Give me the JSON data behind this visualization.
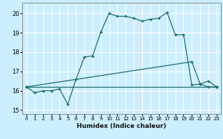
{
  "xlabel": "Humidex (Indice chaleur)",
  "bg_color": "#cceeff",
  "line_color": "#1a6b6b",
  "grid_color": "#ffffff",
  "xlim": [
    -0.5,
    23.5
  ],
  "ylim": [
    14.8,
    20.55
  ],
  "yticks": [
    15,
    16,
    17,
    18,
    19,
    20
  ],
  "xticks": [
    0,
    1,
    2,
    3,
    4,
    5,
    6,
    7,
    8,
    9,
    10,
    11,
    12,
    13,
    14,
    15,
    16,
    17,
    18,
    19,
    20,
    21,
    22,
    23
  ],
  "series1_x": [
    0,
    1,
    2,
    3,
    4,
    5,
    6,
    7,
    8,
    9,
    10,
    11,
    12,
    13,
    14,
    15,
    16,
    17,
    18,
    19,
    20,
    21,
    22,
    23
  ],
  "series1_y": [
    16.2,
    15.9,
    16.0,
    16.0,
    16.1,
    15.3,
    16.6,
    17.75,
    17.8,
    19.05,
    20.0,
    19.85,
    19.85,
    19.75,
    19.6,
    19.7,
    19.75,
    20.05,
    18.9,
    18.9,
    16.3,
    16.35,
    16.2,
    16.2
  ],
  "series2_x": [
    0,
    23
  ],
  "series2_y": [
    16.2,
    16.2
  ],
  "series3_x": [
    0,
    20,
    21,
    22,
    23
  ],
  "series3_y": [
    16.2,
    17.5,
    16.35,
    16.5,
    16.2
  ]
}
